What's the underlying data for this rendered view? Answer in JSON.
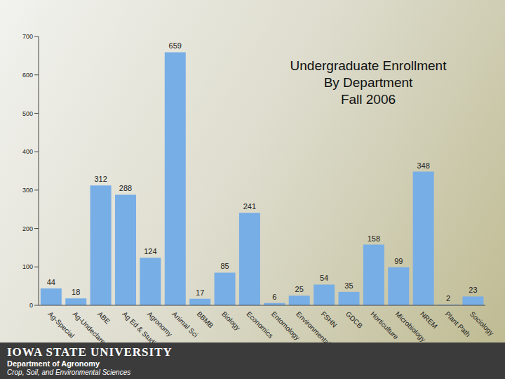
{
  "chart_data": {
    "type": "bar",
    "title": "Undergraduate Enrollment\nBy Department\nFall 2006",
    "categories": [
      "Ag-Special",
      "Ag-Undeclared",
      "ABE",
      "Ag Ed & Studies",
      "Agronomy",
      "Animal Sci",
      "BBMB",
      "Biology",
      "Economics",
      "Entomology",
      "Environmental Sci",
      "FSHN",
      "GDCB",
      "Horticulture",
      "Microbiology",
      "NREM",
      "Plant Path",
      "Sociology"
    ],
    "values": [
      44,
      18,
      312,
      288,
      124,
      659,
      17,
      85,
      241,
      6,
      25,
      54,
      35,
      158,
      99,
      348,
      2,
      23
    ],
    "color": "#78aee6",
    "ylim": [
      0,
      700
    ],
    "yticks": [
      0,
      100,
      200,
      300,
      400,
      500,
      600,
      700
    ],
    "grid": false,
    "data_labels": true
  },
  "footer": {
    "university": "IOWA STATE UNIVERSITY",
    "department": "Department of Agronomy",
    "subtitle": "Crop, Soil, and Environmental Sciences"
  }
}
